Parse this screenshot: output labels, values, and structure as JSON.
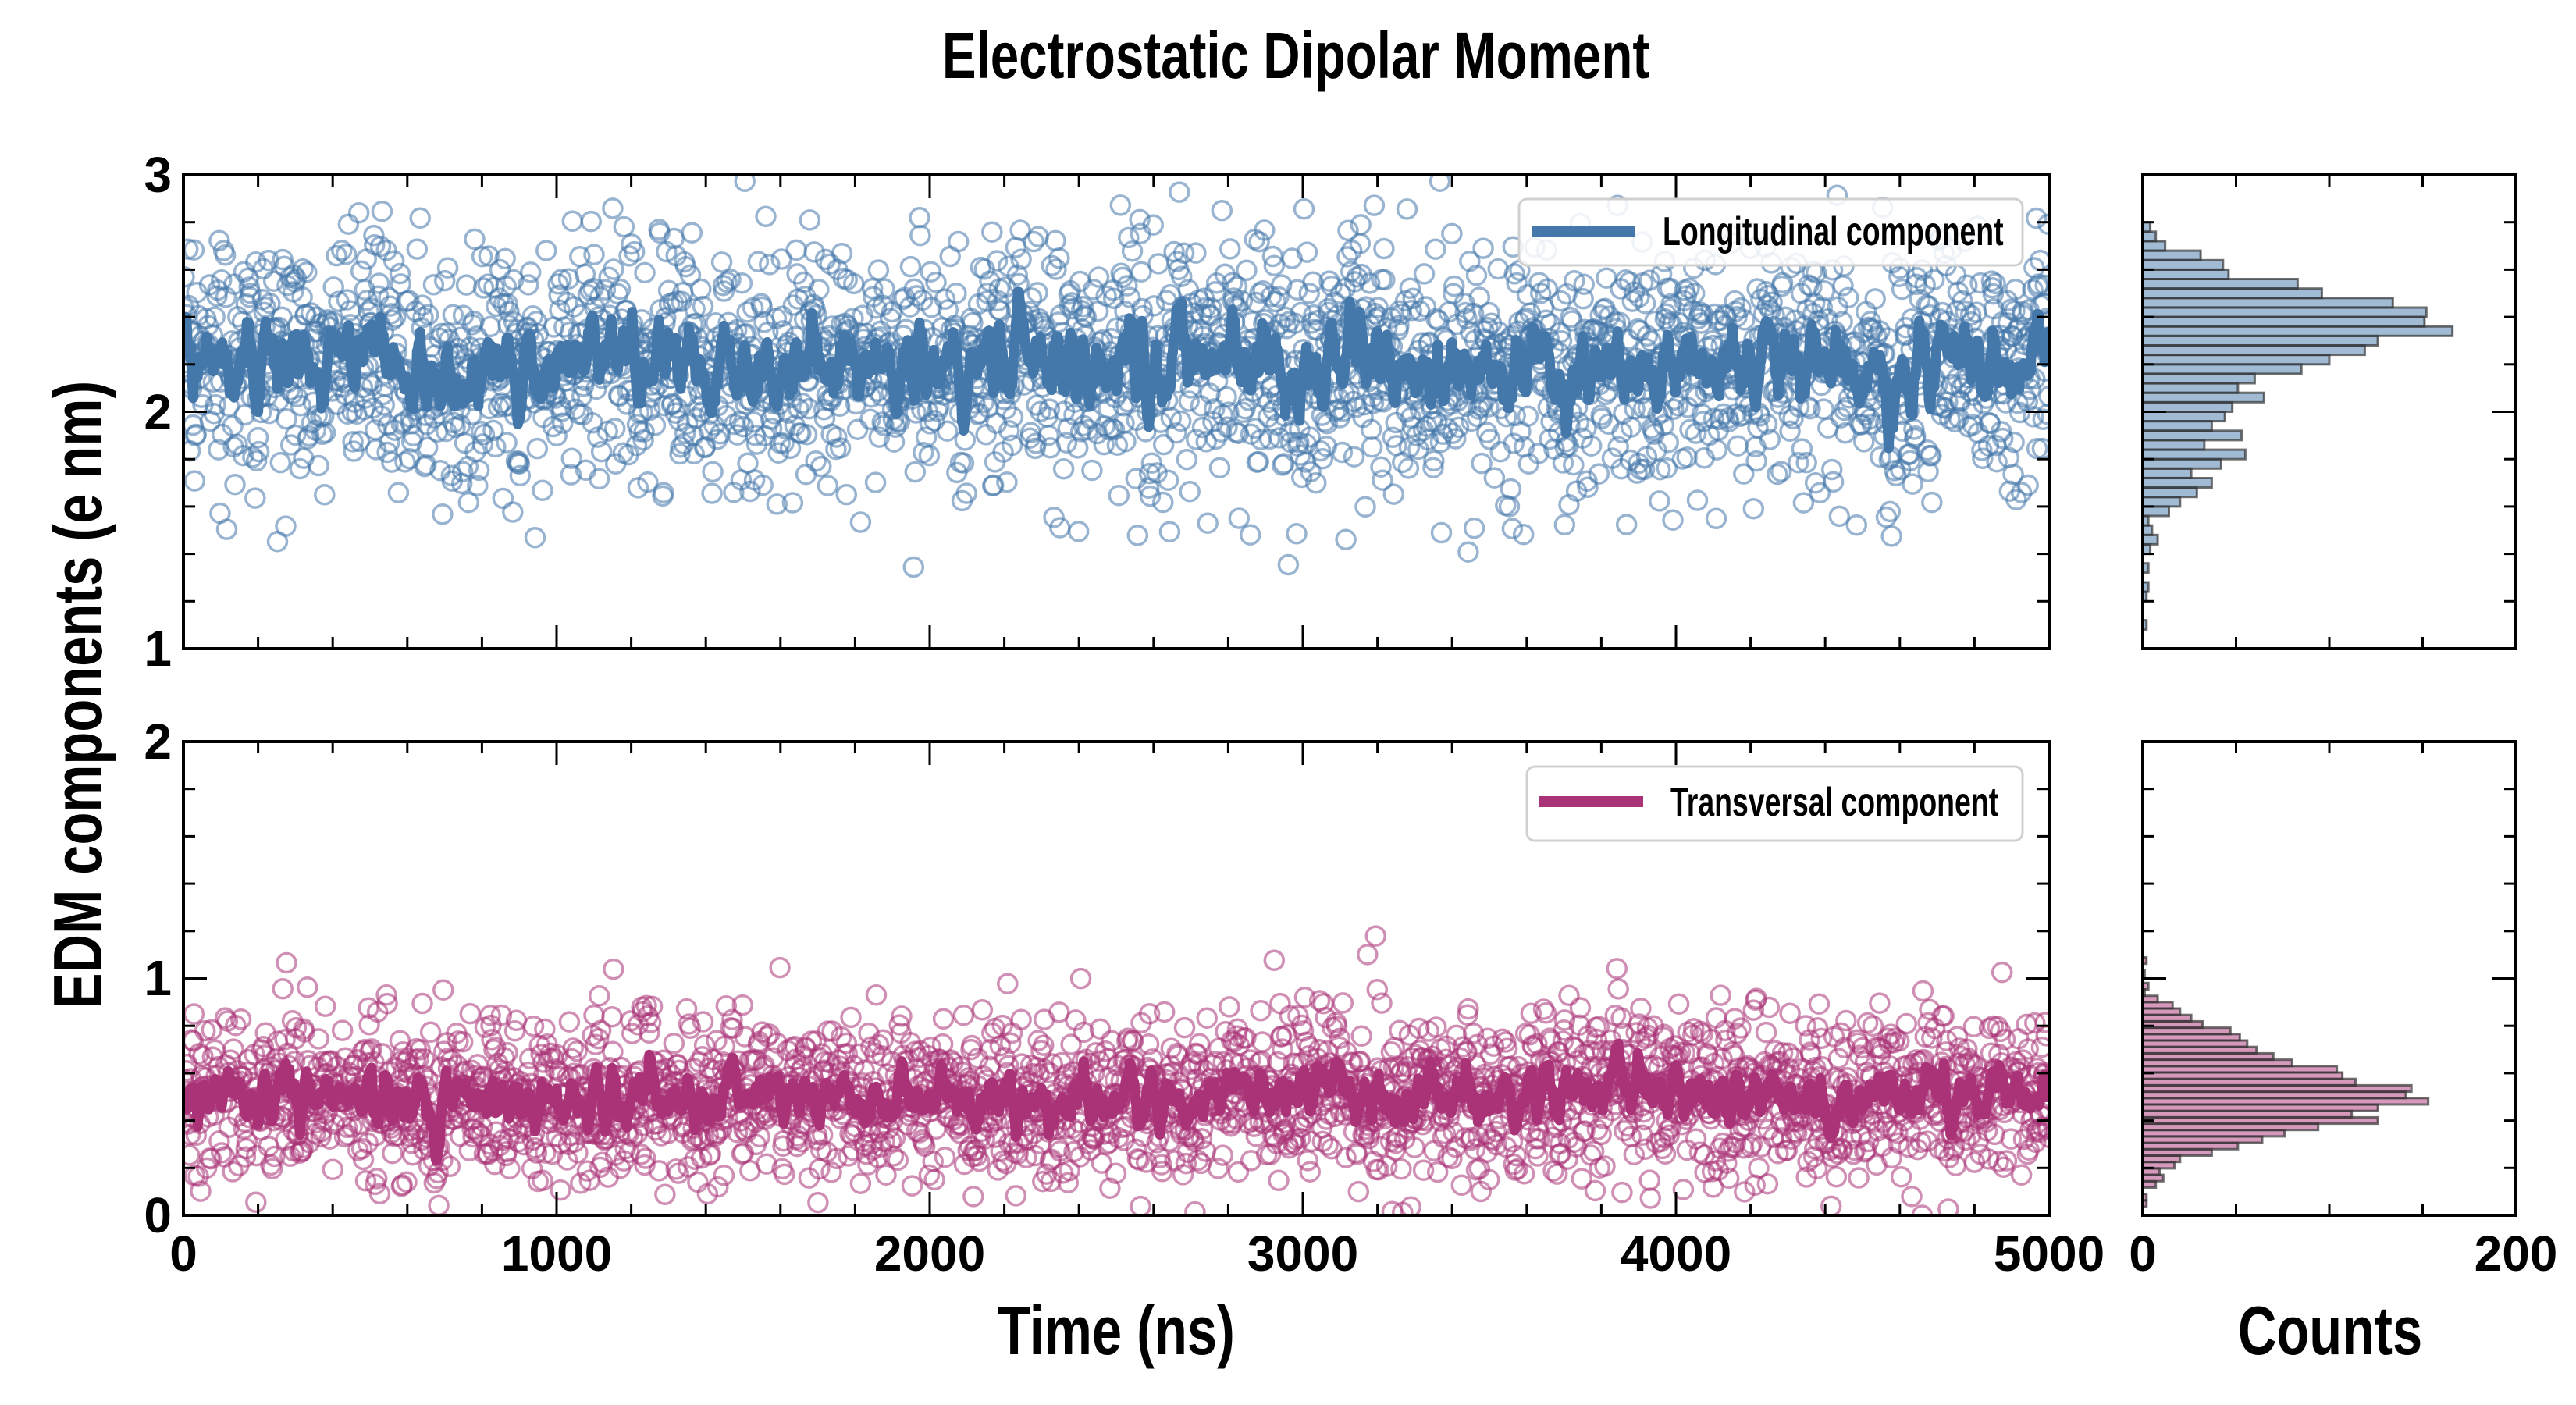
{
  "title": "Electrostatic Dipolar Moment",
  "colors": {
    "longitudinal": "#4477aa",
    "transversal": "#aa3377",
    "hist_edge": "#333333"
  },
  "chart_data": [
    {
      "type": "scatter",
      "panel": "top-time-series",
      "series_name": "Longitudinal component",
      "legend_label": "Longitudinal component",
      "legend_position": "top-right",
      "x_range": [
        0,
        5000
      ],
      "ylim": [
        1,
        3
      ],
      "yticks": [
        "1",
        "2",
        "3"
      ],
      "n_points": 2500,
      "mean": 2.2,
      "std": 0.26,
      "running_mean_window": 9,
      "seed": 7
    },
    {
      "type": "scatter",
      "panel": "bottom-time-series",
      "series_name": "Transversal component",
      "legend_label": "Transversal component",
      "legend_position": "top-right",
      "x_range": [
        0,
        5000
      ],
      "ylim": [
        0,
        2
      ],
      "yticks": [
        "0",
        "1",
        "2"
      ],
      "n_points": 2500,
      "mean": 0.5,
      "std": 0.17,
      "running_mean_window": 9,
      "seed": 13
    },
    {
      "type": "bar",
      "orientation": "horizontal",
      "panel": "top-histogram",
      "bin_start": 1.08,
      "bin_width": 0.04,
      "counts": [
        2,
        0,
        0,
        2,
        3,
        0,
        3,
        0,
        4,
        8,
        5,
        3,
        14,
        20,
        29,
        37,
        26,
        42,
        55,
        33,
        53,
        37,
        44,
        48,
        65,
        51,
        60,
        85,
        100,
        119,
        126,
        166,
        151,
        152,
        134,
        96,
        83,
        46,
        43,
        31,
        12,
        7,
        4
      ],
      "xlim": [
        0,
        200
      ],
      "ylim": [
        1,
        3
      ]
    },
    {
      "type": "bar",
      "orientation": "horizontal",
      "panel": "bottom-histogram",
      "bin_start": 0.036,
      "bin_width": 0.027,
      "counts": [
        2,
        2,
        0,
        7,
        11,
        9,
        17,
        20,
        37,
        51,
        64,
        76,
        94,
        126,
        112,
        126,
        153,
        141,
        144,
        114,
        107,
        104,
        80,
        70,
        61,
        56,
        52,
        47,
        32,
        26,
        20,
        16,
        8,
        1,
        3,
        0,
        1,
        0,
        2
      ],
      "xlim": [
        0,
        200
      ],
      "ylim": [
        0,
        2
      ]
    }
  ],
  "axes": {
    "ylabel": "EDM components (e nm)",
    "xlabel_time": "Time (ns)",
    "xlabel_counts": "Counts",
    "time_ticks": [
      "0",
      "1000",
      "2000",
      "3000",
      "4000",
      "5000"
    ],
    "count_ticks": [
      "0",
      "200"
    ]
  }
}
